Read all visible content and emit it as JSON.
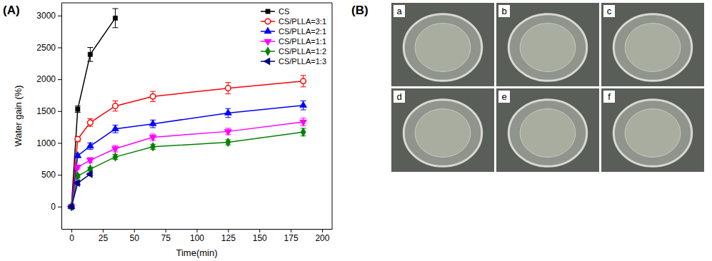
{
  "chart_data": {
    "type": "line",
    "title": "(A)",
    "x_label": "Time(min)",
    "y_label": "Water gain (%)",
    "xlim": [
      -8,
      208
    ],
    "ylim": [
      -350,
      3200
    ],
    "xticks": [
      0,
      25,
      50,
      75,
      100,
      125,
      150,
      175,
      200
    ],
    "yticks": [
      0,
      500,
      1000,
      1500,
      2000,
      2500,
      3000
    ],
    "legend": "upper right",
    "series": [
      {
        "name": "CS",
        "color": "#000000",
        "marker": "square",
        "x": [
          0,
          5,
          15,
          35
        ],
        "values": [
          0,
          1530,
          2390,
          2960
        ],
        "errors": [
          0,
          50,
          110,
          150
        ]
      },
      {
        "name": "CS/PLLA=3:1",
        "color": "#ff0000",
        "marker": "open-circle",
        "x": [
          0,
          5,
          15,
          35,
          65,
          125,
          185
        ],
        "values": [
          0,
          1060,
          1320,
          1580,
          1730,
          1860,
          1970
        ],
        "errors": [
          0,
          40,
          60,
          80,
          80,
          90,
          90
        ]
      },
      {
        "name": "CS/PLLA=2:1",
        "color": "#0000ff",
        "marker": "triangle-up",
        "x": [
          0,
          5,
          15,
          35,
          65,
          125,
          185
        ],
        "values": [
          0,
          800,
          950,
          1220,
          1300,
          1470,
          1590
        ],
        "errors": [
          0,
          30,
          50,
          60,
          60,
          70,
          70
        ]
      },
      {
        "name": "CS/PLLA=1:1",
        "color": "#ff00ff",
        "marker": "triangle-down",
        "x": [
          0,
          5,
          15,
          35,
          65,
          125,
          185
        ],
        "values": [
          0,
          620,
          730,
          910,
          1090,
          1180,
          1330
        ],
        "errors": [
          0,
          30,
          40,
          50,
          50,
          50,
          60
        ]
      },
      {
        "name": "CS/PLLA=1:2",
        "color": "#008000",
        "marker": "diamond",
        "x": [
          0,
          5,
          15,
          35,
          65,
          125,
          185
        ],
        "values": [
          0,
          480,
          590,
          780,
          940,
          1010,
          1170
        ],
        "errors": [
          0,
          30,
          30,
          40,
          40,
          40,
          60
        ]
      },
      {
        "name": "CS/PLLA=1:3",
        "color": "#000080",
        "marker": "triangle-left",
        "x": [
          0,
          5,
          15
        ],
        "values": [
          0,
          370,
          510
        ],
        "errors": [
          0,
          20,
          20
        ]
      }
    ]
  },
  "photos": {
    "label": "(B)",
    "labels": [
      "a",
      "b",
      "c",
      "d",
      "e",
      "f"
    ]
  }
}
